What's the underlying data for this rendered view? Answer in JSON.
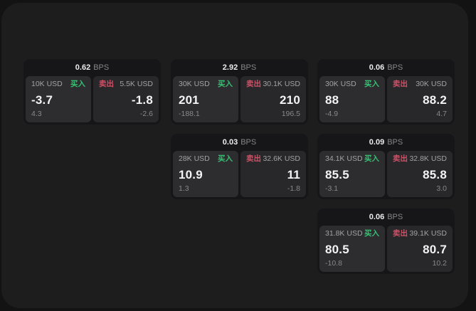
{
  "labels": {
    "bps_unit": "BPS",
    "buy": "买入",
    "sell": "卖出"
  },
  "colors": {
    "buy": "#36c172",
    "sell": "#d15066",
    "panel_bg": "#1d1d1e",
    "card_bg": "#161618",
    "outer_bg": "#131313"
  },
  "cards": [
    {
      "row": 1,
      "col": 1,
      "bps": "0.62",
      "buy_notional": "10K USD",
      "sell_notional": "5.5K USD",
      "buy_price": "-3.7",
      "sell_price": "-1.8",
      "buy_change": "4.3",
      "sell_change": "-2.6"
    },
    {
      "row": 1,
      "col": 2,
      "bps": "2.92",
      "buy_notional": "30K USD",
      "sell_notional": "30.1K USD",
      "buy_price": "201",
      "sell_price": "210",
      "buy_change": "-188.1",
      "sell_change": "196.5"
    },
    {
      "row": 1,
      "col": 3,
      "bps": "0.06",
      "buy_notional": "30K USD",
      "sell_notional": "30K USD",
      "buy_price": "88",
      "sell_price": "88.2",
      "buy_change": "-4.9",
      "sell_change": "4.7"
    },
    {
      "row": 2,
      "col": 2,
      "bps": "0.03",
      "buy_notional": "28K USD",
      "sell_notional": "32.6K USD",
      "buy_price": "10.9",
      "sell_price": "11",
      "buy_change": "1.3",
      "sell_change": "-1.8"
    },
    {
      "row": 2,
      "col": 3,
      "bps": "0.09",
      "buy_notional": "34.1K USD",
      "sell_notional": "32.8K USD",
      "buy_price": "85.5",
      "sell_price": "85.8",
      "buy_change": "-3.1",
      "sell_change": "3.0"
    },
    {
      "row": 3,
      "col": 3,
      "bps": "0.06",
      "buy_notional": "31.8K USD",
      "sell_notional": "39.1K USD",
      "buy_price": "80.5",
      "sell_price": "80.7",
      "buy_change": "-10.8",
      "sell_change": "10.2"
    }
  ]
}
